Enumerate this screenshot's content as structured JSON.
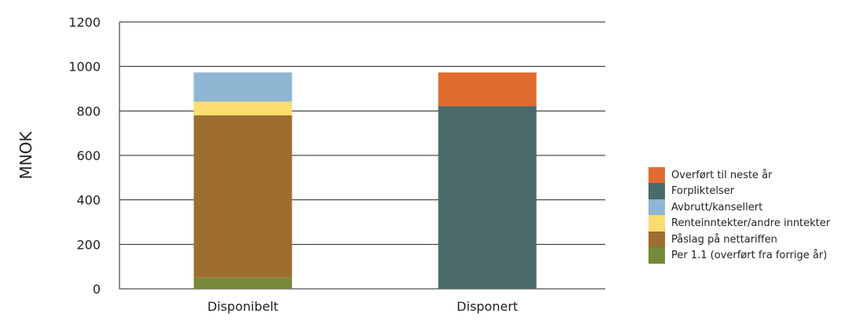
{
  "chart_data": {
    "type": "bar",
    "stacked": true,
    "categories": [
      "Disponibelt",
      "Disponert"
    ],
    "ylabel": "MNOK",
    "xlabel": "",
    "ylim": [
      0,
      1200
    ],
    "yticks": [
      "0",
      "200",
      "400",
      "600",
      "800",
      "1000",
      "1200"
    ],
    "grid": true,
    "legend_position": "right",
    "series": [
      {
        "name": "Per 1.1 (overført fra forrige år)",
        "color": "#77893a",
        "values": [
          50,
          0
        ]
      },
      {
        "name": "Påslag på nettariffen",
        "color": "#9e6e30",
        "values": [
          730,
          0
        ]
      },
      {
        "name": "Renteinntekter/andre inntekter",
        "color": "#fadd6e",
        "values": [
          62,
          0
        ]
      },
      {
        "name": "Avbrutt/kansellert",
        "color": "#8fb6d3",
        "values": [
          131,
          0
        ]
      },
      {
        "name": "Forpliktelser",
        "color": "#4b6b6b",
        "values": [
          0,
          822
        ]
      },
      {
        "name": "Overført til neste år",
        "color": "#e06c30",
        "values": [
          0,
          151
        ]
      }
    ]
  }
}
